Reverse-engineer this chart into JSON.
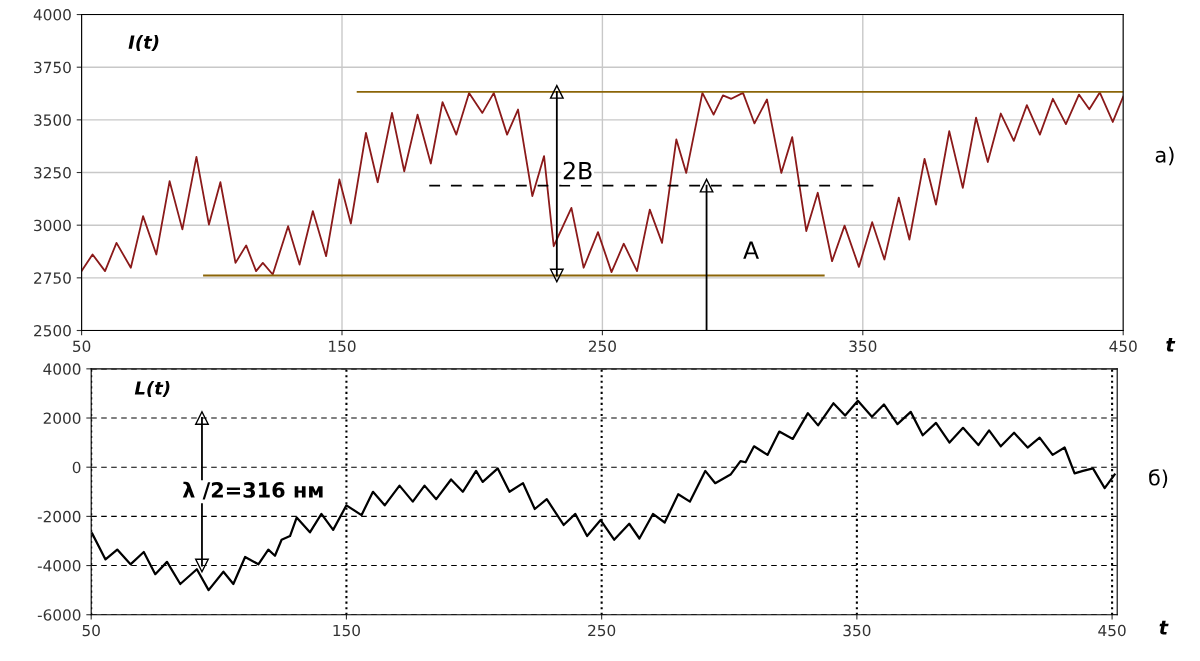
{
  "chart_data": [
    {
      "type": "line",
      "xlabel": "t",
      "ylabel": "I(t)",
      "xlim": [
        50,
        450
      ],
      "ylim": [
        2500,
        4000
      ],
      "xticks": [
        50,
        150,
        250,
        350,
        450
      ],
      "yticks": [
        2500,
        2750,
        3000,
        3250,
        3500,
        3750,
        4000
      ],
      "grid": true,
      "annotations": [
        "2B",
        "A",
        "a)"
      ],
      "series": [
        {
          "color": "#8b1a1a",
          "x": [
            50,
            54.2,
            59,
            63.4,
            68.9,
            73.6,
            78.7,
            83.8,
            88.7,
            94.1,
            98.9,
            103.3,
            109.1,
            113.2,
            117,
            119.6,
            123.4,
            129.3,
            133.7,
            138.8,
            143.9,
            149,
            153.4,
            159.2,
            163.7,
            169.2,
            173.9,
            179,
            184.1,
            188.6,
            193.9,
            198.8,
            203.9,
            208.3,
            213.4,
            217.6,
            223.1,
            227.6,
            231.3,
            238.1,
            242.8,
            248.3,
            253.5,
            258.2,
            263.3,
            268.2,
            272.9,
            278.4,
            282.2,
            288.4,
            292.7,
            296.3,
            299.5,
            304,
            308.4,
            313.2,
            318.7,
            322.9,
            328.3,
            332.7,
            338.2,
            343,
            348.5,
            353.6,
            358.3,
            363.8,
            367.9,
            373.7,
            378.1,
            383.2,
            388.4,
            393.5,
            398,
            403,
            408,
            413,
            418,
            423,
            428,
            433,
            437,
            441,
            446,
            450
          ],
          "values": [
            2782,
            2861,
            2782,
            2916,
            2798,
            3043,
            2861,
            3209,
            2980,
            3324,
            3003,
            3204,
            2821,
            2904,
            2782,
            2821,
            2766,
            2995,
            2813,
            3067,
            2853,
            3217,
            3008,
            3438,
            3204,
            3533,
            3256,
            3525,
            3293,
            3584,
            3430,
            3628,
            3533,
            3628,
            3430,
            3549,
            3138,
            3328,
            2900,
            3082,
            2798,
            2967,
            2777,
            2912,
            2782,
            3074,
            2916,
            3407,
            3248,
            3628,
            3525,
            3616,
            3600,
            3628,
            3483,
            3597,
            3248,
            3418,
            2972,
            3154,
            2829,
            2998,
            2802,
            3014,
            2837,
            3131,
            2932,
            3315,
            3098,
            3446,
            3177,
            3510,
            3300,
            3530,
            3400,
            3570,
            3430,
            3600,
            3480,
            3620,
            3550,
            3630,
            3490,
            3610
          ]
        },
        {
          "color": "#8b6508",
          "x": [
            156,
            450
          ],
          "values": [
            3633,
            3633
          ]
        },
        {
          "color": "#8b6508",
          "x": [
            97,
            335
          ],
          "values": [
            2761,
            2761
          ]
        },
        {
          "color": "#000000",
          "line_style": "dashed",
          "x": [
            183.5,
            354.5
          ],
          "values": [
            3188,
            3188
          ]
        },
        {
          "color": "#000000",
          "marker": "triangle",
          "x": [
            232.5,
            232.5
          ],
          "values": [
            2761,
            3633
          ]
        },
        {
          "color": "#000000",
          "marker": "triangle",
          "x": [
            290,
            290
          ],
          "values": [
            2500,
            3188
          ]
        }
      ]
    },
    {
      "type": "line",
      "xlabel": "t",
      "ylabel": "L(t)",
      "xlim": [
        50,
        452
      ],
      "ylim": [
        -6000,
        4000
      ],
      "xticks": [
        50,
        150,
        250,
        350,
        450
      ],
      "yticks": [
        -6000,
        -4000,
        -2000,
        0,
        2000,
        4000
      ],
      "grid": true,
      "annotations": [
        "λ /2=316 нм",
        "б)"
      ],
      "series": [
        {
          "color": "#000000",
          "x": [
            50.4,
            55.6,
            60.2,
            65.4,
            70.6,
            75.1,
            79.7,
            84.9,
            91.4,
            96,
            101.8,
            105.7,
            110.3,
            115.5,
            119.4,
            122,
            124.6,
            127.9,
            130.5,
            135.7,
            140.2,
            144.8,
            150,
            155.9,
            160.4,
            165,
            170.8,
            176,
            180.6,
            185.2,
            191,
            195.6,
            200.8,
            203.4,
            209.3,
            213.9,
            219.2,
            223.8,
            228.5,
            235.1,
            239.7,
            244.3,
            249.6,
            254.9,
            260.8,
            264.8,
            270.1,
            274.7,
            280,
            284.6,
            290.6,
            294.5,
            300.5,
            304.4,
            306.4,
            309.7,
            315,
            319.6,
            324.9,
            330.8,
            334.8,
            340.8,
            345.4,
            350.4,
            355.9,
            360.6,
            365.9,
            371.1,
            375.8,
            381,
            386.3,
            391.6,
            397.6,
            401.8,
            406.4,
            411.6,
            416.9,
            421.6,
            426.7,
            431.4,
            435.3,
            438.6,
            442.5,
            447.1,
            451
          ],
          "values": [
            -2700,
            -3750,
            -3350,
            -3950,
            -3450,
            -4350,
            -3850,
            -4750,
            -4150,
            -5000,
            -4250,
            -4750,
            -3650,
            -3950,
            -3350,
            -3600,
            -2950,
            -2800,
            -2050,
            -2650,
            -1900,
            -2550,
            -1550,
            -1950,
            -1000,
            -1550,
            -750,
            -1400,
            -750,
            -1300,
            -500,
            -1000,
            -150,
            -600,
            -50,
            -1000,
            -650,
            -1700,
            -1300,
            -2350,
            -1900,
            -2800,
            -2150,
            -2950,
            -2300,
            -2900,
            -1900,
            -2250,
            -1100,
            -1400,
            -150,
            -650,
            -300,
            250,
            200,
            850,
            500,
            1450,
            1150,
            2200,
            1700,
            2600,
            2100,
            2700,
            2050,
            2550,
            1750,
            2250,
            1300,
            1800,
            1000,
            1600,
            900,
            1500,
            850,
            1400,
            800,
            1200,
            500,
            800,
            -250,
            -150,
            -50,
            -850,
            -300
          ]
        },
        {
          "color": "#000000",
          "marker": "triangle",
          "x": [
            93.4,
            93.4
          ],
          "values": [
            -4000,
            2000
          ]
        }
      ]
    }
  ]
}
